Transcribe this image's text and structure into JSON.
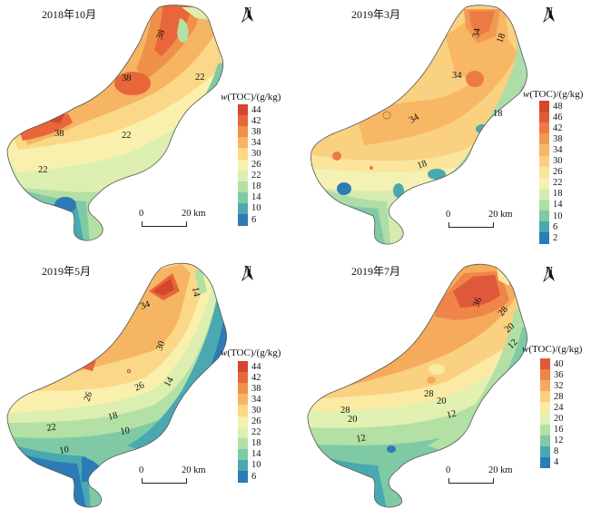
{
  "panels": [
    {
      "title": "2018年10月",
      "north": "N",
      "legend_title_var": "w",
      "legend_title_rest": "(TOC)/(g/kg)",
      "legend_ticks": [
        "44",
        "42",
        "38",
        "34",
        "30",
        "26",
        "22",
        "18",
        "14",
        "10",
        "6"
      ],
      "legend_colors": [
        "#d6452d",
        "#e8663a",
        "#f09049",
        "#f6b562",
        "#fad887",
        "#faf0ad",
        "#dcefb0",
        "#b2e0a5",
        "#7fcaa5",
        "#4aa9b0",
        "#2c7bb6"
      ],
      "contour_labels": [
        "38",
        "38",
        "22",
        "38",
        "22",
        "22"
      ],
      "scale": {
        "zero": "0",
        "dist": "20 km"
      }
    },
    {
      "title": "2019年3月",
      "north": "N",
      "legend_title_var": "w",
      "legend_title_rest": "(TOC)/(g/kg)",
      "legend_ticks": [
        "48",
        "46",
        "42",
        "38",
        "34",
        "30",
        "26",
        "22",
        "18",
        "14",
        "10",
        "6",
        "2"
      ],
      "legend_colors": [
        "#d6452d",
        "#e2593a",
        "#ec7a44",
        "#f29a52",
        "#f7b765",
        "#fad081",
        "#fbe59c",
        "#f3f2b4",
        "#d6ecaf",
        "#aedda7",
        "#7fcaa5",
        "#4aa9b0",
        "#2c7bb6"
      ],
      "contour_labels": [
        "34",
        "18",
        "34",
        "34",
        "18",
        "18"
      ],
      "scale": {
        "zero": "0",
        "dist": "20 km"
      }
    },
    {
      "title": "2019年5月",
      "north": "N",
      "legend_title_var": "w",
      "legend_title_rest": "(TOC)/(g/kg)",
      "legend_ticks": [
        "44",
        "42",
        "38",
        "34",
        "30",
        "26",
        "22",
        "18",
        "14",
        "10",
        "6"
      ],
      "legend_colors": [
        "#d6452d",
        "#e8663a",
        "#f09049",
        "#f6b562",
        "#fad887",
        "#faf0ad",
        "#dcefb0",
        "#b2e0a5",
        "#7fcaa5",
        "#4aa9b0",
        "#2c7bb6"
      ],
      "contour_labels": [
        "14",
        "34",
        "30",
        "26",
        "26",
        "14",
        "22",
        "18",
        "10",
        "10"
      ],
      "scale": {
        "zero": "0",
        "dist": "20 km"
      }
    },
    {
      "title": "2019年7月",
      "north": "N",
      "legend_title_var": "w",
      "legend_title_rest": "(TOC)/(g/kg)",
      "legend_ticks": [
        "40",
        "36",
        "32",
        "28",
        "24",
        "20",
        "16",
        "12",
        "8",
        "4"
      ],
      "legend_colors": [
        "#e0583a",
        "#ef8548",
        "#f6aa5c",
        "#fad081",
        "#faeaa4",
        "#e2f0b2",
        "#b2e0a5",
        "#7fcaa5",
        "#4aa9b0",
        "#2c7bb6"
      ],
      "contour_labels": [
        "36",
        "28",
        "20",
        "12",
        "28",
        "20",
        "28",
        "20",
        "12",
        "12"
      ],
      "scale": {
        "zero": "0",
        "dist": "20 km"
      }
    }
  ]
}
